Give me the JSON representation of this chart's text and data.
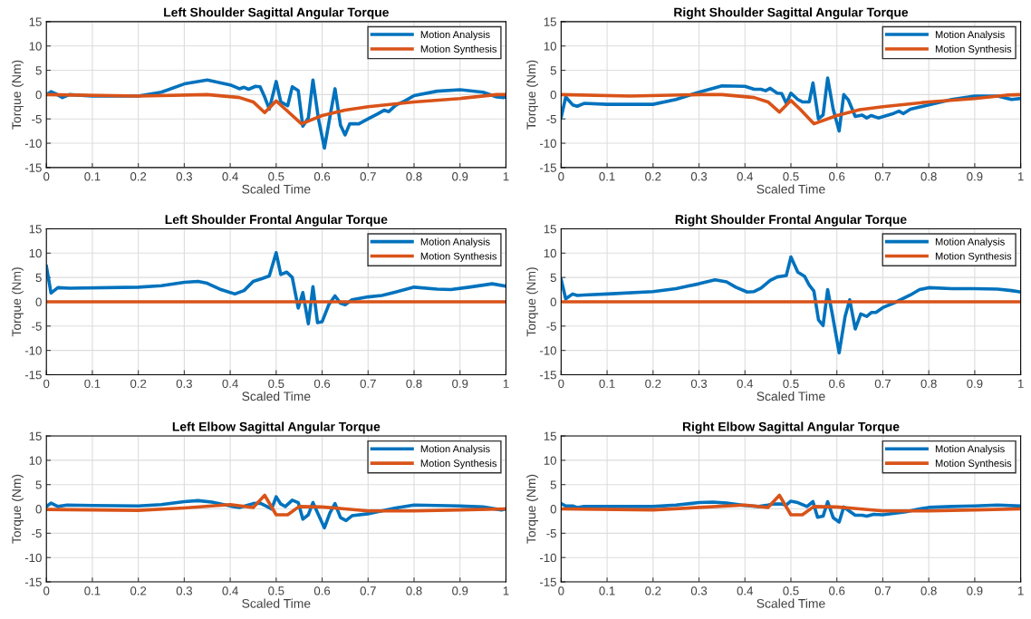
{
  "chart_data": [
    {
      "type": "line",
      "title": "Left Shoulder Sagittal Angular Torque",
      "xlabel": "Scaled Time",
      "ylabel": "Torque (Nm)",
      "xlim": [
        0,
        1
      ],
      "ylim": [
        -15,
        15
      ],
      "xticks": [
        0,
        0.1,
        0.2,
        0.3,
        0.4,
        0.5,
        0.6,
        0.7,
        0.8,
        0.9,
        1
      ],
      "yticks": [
        -15,
        -10,
        -5,
        0,
        5,
        10,
        15
      ],
      "grid": true,
      "legend": "top right",
      "series": [
        {
          "name": "Motion Analysis",
          "color": "#0072bd",
          "x": [
            0,
            0.01,
            0.02,
            0.035,
            0.05,
            0.1,
            0.2,
            0.25,
            0.3,
            0.35,
            0.4,
            0.42,
            0.43,
            0.44,
            0.455,
            0.465,
            0.475,
            0.485,
            0.5,
            0.51,
            0.525,
            0.535,
            0.548,
            0.558,
            0.57,
            0.58,
            0.592,
            0.605,
            0.618,
            0.628,
            0.64,
            0.65,
            0.66,
            0.68,
            0.7,
            0.72,
            0.735,
            0.745,
            0.76,
            0.78,
            0.8,
            0.85,
            0.9,
            0.95,
            0.98,
            0.995,
            1
          ],
          "values": [
            0,
            0.6,
            0.2,
            -0.6,
            0,
            -0.3,
            -0.3,
            0.5,
            2.2,
            3.0,
            2.0,
            1.2,
            1.5,
            1.1,
            1.7,
            1.6,
            -0.5,
            -3.0,
            2.7,
            -1.5,
            -2.3,
            1.6,
            0.8,
            -6.5,
            -4.8,
            3.0,
            -5,
            -11,
            -4,
            1.2,
            -6.3,
            -8.3,
            -6,
            -6,
            -5,
            -4,
            -3.2,
            -3.5,
            -2.2,
            -1.3,
            -0.2,
            0.7,
            1.0,
            0.5,
            -0.5,
            -0.6,
            -0.5
          ]
        },
        {
          "name": "Motion Synthesis",
          "color": "#d95319",
          "x": [
            0,
            0.2,
            0.35,
            0.42,
            0.45,
            0.475,
            0.5,
            0.52,
            0.555,
            0.6,
            0.65,
            0.7,
            0.8,
            0.9,
            0.98,
            1
          ],
          "values": [
            0,
            -0.3,
            0,
            -0.6,
            -1.5,
            -3.7,
            -1.3,
            -3,
            -6,
            -4.3,
            -3.2,
            -2.5,
            -1.5,
            -0.8,
            0,
            0
          ]
        }
      ]
    },
    {
      "type": "line",
      "title": "Right Shoulder Sagittal Angular Torque",
      "xlabel": "Scaled Time",
      "ylabel": "Torque (Nm)",
      "xlim": [
        0,
        1
      ],
      "ylim": [
        -15,
        15
      ],
      "xticks": [
        0,
        0.1,
        0.2,
        0.3,
        0.4,
        0.5,
        0.6,
        0.7,
        0.8,
        0.9,
        1
      ],
      "yticks": [
        -15,
        -10,
        -5,
        0,
        5,
        10,
        15
      ],
      "grid": true,
      "legend": "top right",
      "series": [
        {
          "name": "Motion Analysis",
          "color": "#0072bd",
          "x": [
            0,
            0.01,
            0.025,
            0.035,
            0.05,
            0.1,
            0.2,
            0.25,
            0.3,
            0.35,
            0.4,
            0.42,
            0.435,
            0.445,
            0.455,
            0.47,
            0.48,
            0.49,
            0.5,
            0.515,
            0.525,
            0.54,
            0.548,
            0.56,
            0.57,
            0.58,
            0.592,
            0.605,
            0.615,
            0.625,
            0.64,
            0.655,
            0.665,
            0.675,
            0.69,
            0.72,
            0.735,
            0.745,
            0.76,
            0.8,
            0.85,
            0.9,
            0.95,
            0.98,
            1
          ],
          "values": [
            -4.7,
            -0.5,
            -2.1,
            -2.4,
            -1.8,
            -2,
            -2,
            -1,
            0.5,
            1.8,
            1.7,
            1.1,
            1.1,
            0.8,
            1.3,
            0.3,
            0.2,
            -1.8,
            0.3,
            -1,
            -1.5,
            -1.5,
            2.4,
            -5,
            -4.2,
            3.4,
            -3,
            -7.5,
            0,
            -1.1,
            -4.5,
            -4.2,
            -4.8,
            -4.3,
            -4.8,
            -4,
            -3.4,
            -3.9,
            -3,
            -2.1,
            -1,
            -0.3,
            -0.3,
            -1,
            -0.8
          ]
        },
        {
          "name": "Motion Synthesis",
          "color": "#d95319",
          "x": [
            0,
            0.15,
            0.3,
            0.35,
            0.42,
            0.45,
            0.475,
            0.5,
            0.52,
            0.55,
            0.6,
            0.65,
            0.7,
            0.8,
            0.9,
            0.97,
            1
          ],
          "values": [
            0,
            -0.3,
            0,
            0,
            -0.6,
            -1.5,
            -3.6,
            -1.2,
            -3,
            -6,
            -4.3,
            -3.1,
            -2.5,
            -1.5,
            -0.8,
            -0.1,
            0
          ]
        }
      ]
    },
    {
      "type": "line",
      "title": "Left Shoulder Frontal Angular Torque",
      "xlabel": "Scaled Time",
      "ylabel": "Torque (Nm)",
      "xlim": [
        0,
        1
      ],
      "ylim": [
        -15,
        15
      ],
      "xticks": [
        0,
        0.1,
        0.2,
        0.3,
        0.4,
        0.5,
        0.6,
        0.7,
        0.8,
        0.9,
        1
      ],
      "yticks": [
        -15,
        -10,
        -5,
        0,
        5,
        10,
        15
      ],
      "grid": true,
      "legend": "top right",
      "series": [
        {
          "name": "Motion Analysis",
          "color": "#0072bd",
          "x": [
            0,
            0.01,
            0.025,
            0.05,
            0.2,
            0.25,
            0.3,
            0.33,
            0.35,
            0.38,
            0.41,
            0.43,
            0.45,
            0.47,
            0.485,
            0.5,
            0.51,
            0.523,
            0.535,
            0.548,
            0.558,
            0.57,
            0.58,
            0.59,
            0.6,
            0.615,
            0.628,
            0.64,
            0.65,
            0.665,
            0.7,
            0.73,
            0.76,
            0.8,
            0.85,
            0.88,
            0.92,
            0.97,
            1
          ],
          "values": [
            7.3,
            1.8,
            2.9,
            2.8,
            3.0,
            3.3,
            4.0,
            4.2,
            3.8,
            2.5,
            1.6,
            2.3,
            4.2,
            4.8,
            5.3,
            10.1,
            5.6,
            6.1,
            5,
            -1.3,
            1.9,
            -4.5,
            3.1,
            -4.3,
            -4.1,
            -0.5,
            1.2,
            -0.3,
            -0.6,
            0.4,
            1.0,
            1.3,
            2,
            3,
            2.6,
            2.5,
            3,
            3.7,
            3.2
          ]
        },
        {
          "name": "Motion Synthesis",
          "color": "#d95319",
          "x": [
            0,
            0.5,
            1
          ],
          "values": [
            0,
            0,
            0
          ]
        }
      ]
    },
    {
      "type": "line",
      "title": "Right Shoulder Frontal Angular Torque",
      "xlabel": "Scaled Time",
      "ylabel": "Torque (Nm)",
      "xlim": [
        0,
        1
      ],
      "ylim": [
        -15,
        15
      ],
      "xticks": [
        0,
        0.1,
        0.2,
        0.3,
        0.4,
        0.5,
        0.6,
        0.7,
        0.8,
        0.9,
        1
      ],
      "yticks": [
        -15,
        -10,
        -5,
        0,
        5,
        10,
        15
      ],
      "grid": true,
      "legend": "top right",
      "series": [
        {
          "name": "Motion Analysis",
          "color": "#0072bd",
          "x": [
            0,
            0.01,
            0.025,
            0.035,
            0.05,
            0.1,
            0.2,
            0.25,
            0.3,
            0.335,
            0.36,
            0.38,
            0.405,
            0.42,
            0.435,
            0.455,
            0.47,
            0.49,
            0.5,
            0.515,
            0.53,
            0.54,
            0.55,
            0.56,
            0.57,
            0.58,
            0.59,
            0.605,
            0.618,
            0.628,
            0.64,
            0.652,
            0.665,
            0.675,
            0.685,
            0.7,
            0.73,
            0.76,
            0.78,
            0.8,
            0.85,
            0.9,
            0.95,
            0.98,
            1
          ],
          "values": [
            4.6,
            0.6,
            1.6,
            1.3,
            1.4,
            1.6,
            2.1,
            2.7,
            3.7,
            4.5,
            4.1,
            3.0,
            2.0,
            2.1,
            2.8,
            4.4,
            5.1,
            5.4,
            9.2,
            6.1,
            5.2,
            3.4,
            2.2,
            -3.7,
            -4.9,
            2.5,
            -2.5,
            -10.5,
            -3,
            0.4,
            -5.6,
            -2.5,
            -3,
            -2.2,
            -2.2,
            -1.2,
            0,
            1.4,
            2.5,
            2.9,
            2.7,
            2.7,
            2.6,
            2.3,
            2.0
          ]
        },
        {
          "name": "Motion Synthesis",
          "color": "#d95319",
          "x": [
            0,
            0.5,
            1
          ],
          "values": [
            0,
            0,
            0
          ]
        }
      ]
    },
    {
      "type": "line",
      "title": "Left Elbow Sagittal Angular Torque",
      "xlabel": "Scaled Time",
      "ylabel": "Torque (Nm)",
      "xlim": [
        0,
        1
      ],
      "ylim": [
        -15,
        15
      ],
      "xticks": [
        0,
        0.1,
        0.2,
        0.3,
        0.4,
        0.5,
        0.6,
        0.7,
        0.8,
        0.9,
        1
      ],
      "yticks": [
        -15,
        -10,
        -5,
        0,
        5,
        10,
        15
      ],
      "grid": true,
      "legend": "top right",
      "series": [
        {
          "name": "Motion Analysis",
          "color": "#0072bd",
          "x": [
            0,
            0.01,
            0.025,
            0.045,
            0.1,
            0.2,
            0.25,
            0.3,
            0.33,
            0.36,
            0.4,
            0.42,
            0.45,
            0.465,
            0.48,
            0.49,
            0.5,
            0.51,
            0.52,
            0.535,
            0.548,
            0.558,
            0.57,
            0.58,
            0.592,
            0.605,
            0.617,
            0.628,
            0.64,
            0.652,
            0.665,
            0.7,
            0.72,
            0.76,
            0.8,
            0.85,
            0.9,
            0.95,
            0.99,
            1
          ],
          "values": [
            0.5,
            1.2,
            0.5,
            0.8,
            0.7,
            0.6,
            0.9,
            1.5,
            1.7,
            1.4,
            0.6,
            0.3,
            1.1,
            1.2,
            0.5,
            0,
            2.5,
            1.0,
            0.5,
            1.8,
            1.3,
            -2.1,
            -1.2,
            1.3,
            -1.2,
            -3.9,
            -0.8,
            1.1,
            -1.8,
            -2.4,
            -1.4,
            -1.0,
            -0.6,
            0.2,
            0.8,
            0.7,
            0.6,
            0.4,
            -0.2,
            0
          ]
        },
        {
          "name": "Motion Synthesis",
          "color": "#d95319",
          "x": [
            0,
            0.2,
            0.3,
            0.4,
            0.45,
            0.475,
            0.5,
            0.525,
            0.55,
            0.6,
            0.65,
            0.7,
            0.8,
            0.9,
            1
          ],
          "values": [
            -0.1,
            -0.3,
            0.2,
            0.9,
            0.3,
            2.8,
            -1.2,
            -1.2,
            0.5,
            0.4,
            0,
            -0.4,
            -0.4,
            -0.2,
            0
          ]
        }
      ]
    },
    {
      "type": "line",
      "title": "Right Elbow Sagittal Angular Torque",
      "xlabel": "Scaled Time",
      "ylabel": "Torque (Nm)",
      "xlim": [
        0,
        1
      ],
      "ylim": [
        -15,
        15
      ],
      "xticks": [
        0,
        0.1,
        0.2,
        0.3,
        0.4,
        0.5,
        0.6,
        0.7,
        0.8,
        0.9,
        1
      ],
      "yticks": [
        -15,
        -10,
        -5,
        0,
        5,
        10,
        15
      ],
      "grid": true,
      "legend": "top right",
      "series": [
        {
          "name": "Motion Analysis",
          "color": "#0072bd",
          "x": [
            0,
            0.01,
            0.025,
            0.035,
            0.05,
            0.1,
            0.2,
            0.25,
            0.3,
            0.33,
            0.36,
            0.4,
            0.43,
            0.45,
            0.46,
            0.48,
            0.49,
            0.5,
            0.515,
            0.535,
            0.548,
            0.558,
            0.57,
            0.58,
            0.592,
            0.605,
            0.615,
            0.628,
            0.64,
            0.655,
            0.665,
            0.68,
            0.7,
            0.75,
            0.78,
            0.8,
            0.85,
            0.9,
            0.95,
            1
          ],
          "values": [
            1.1,
            0.6,
            0.6,
            0.3,
            0.5,
            0.5,
            0.5,
            0.8,
            1.3,
            1.4,
            1.2,
            0.7,
            0.5,
            0.8,
            1.0,
            1.0,
            0.8,
            1.6,
            1.3,
            0.5,
            1.5,
            -1.7,
            -1.5,
            1.5,
            -1.8,
            -2.7,
            0.4,
            -0.5,
            -1.3,
            -1.3,
            -1.5,
            -1.1,
            -1.2,
            -0.6,
            0,
            0.3,
            0.5,
            0.6,
            0.8,
            0.6
          ]
        },
        {
          "name": "Motion Synthesis",
          "color": "#d95319",
          "x": [
            0,
            0.2,
            0.3,
            0.4,
            0.45,
            0.475,
            0.5,
            0.525,
            0.55,
            0.6,
            0.65,
            0.7,
            0.8,
            0.9,
            1
          ],
          "values": [
            0,
            -0.2,
            0.3,
            0.8,
            0.3,
            2.8,
            -1.2,
            -1.2,
            0.5,
            0.4,
            0,
            -0.4,
            -0.4,
            -0.2,
            0
          ]
        }
      ]
    }
  ]
}
